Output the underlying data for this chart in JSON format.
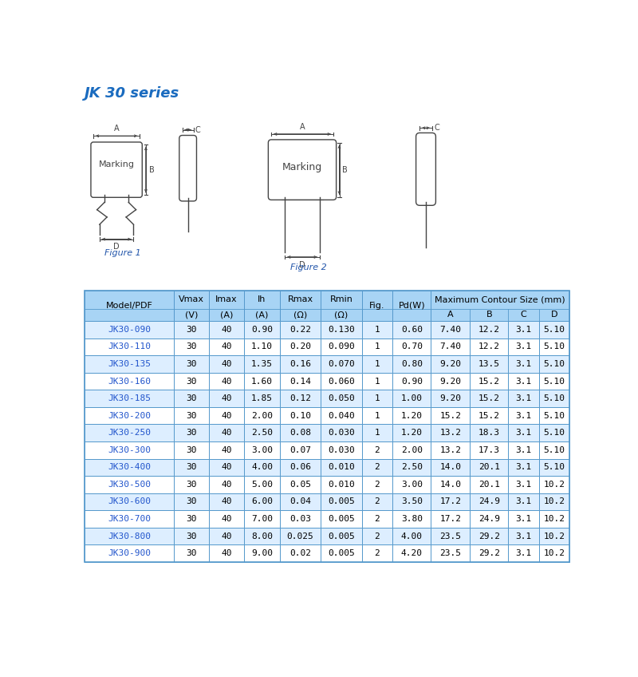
{
  "title": "JK 30 series",
  "title_color": "#1a6bbf",
  "figure1_label": "Figure 1",
  "figure2_label": "Figure 2",
  "figure_label_color": "#2255aa",
  "table_header_bg": "#a8d4f5",
  "table_border_color": "#5599cc",
  "table_model_color": "#2255cc",
  "col_headers_main": [
    "Model/PDF",
    "Vmax\n(V)",
    "Imax\n(A)",
    "Ih\n(A)",
    "Rmax\n(Ω)",
    "Rmin\n(Ω)",
    "Fig.",
    "Pd(W)"
  ],
  "col_headers_abcd": [
    "A",
    "B",
    "C",
    "D"
  ],
  "col_widths_raw": [
    108,
    43,
    43,
    43,
    50,
    50,
    37,
    47,
    47,
    47,
    37,
    37
  ],
  "rows": [
    [
      "JK30-090",
      "30",
      "40",
      "0.90",
      "0.22",
      "0.130",
      "1",
      "0.60",
      "7.40",
      "12.2",
      "3.1",
      "5.10"
    ],
    [
      "JK30-110",
      "30",
      "40",
      "1.10",
      "0.20",
      "0.090",
      "1",
      "0.70",
      "7.40",
      "12.2",
      "3.1",
      "5.10"
    ],
    [
      "JK30-135",
      "30",
      "40",
      "1.35",
      "0.16",
      "0.070",
      "1",
      "0.80",
      "9.20",
      "13.5",
      "3.1",
      "5.10"
    ],
    [
      "JK30-160",
      "30",
      "40",
      "1.60",
      "0.14",
      "0.060",
      "1",
      "0.90",
      "9.20",
      "15.2",
      "3.1",
      "5.10"
    ],
    [
      "JK30-185",
      "30",
      "40",
      "1.85",
      "0.12",
      "0.050",
      "1",
      "1.00",
      "9.20",
      "15.2",
      "3.1",
      "5.10"
    ],
    [
      "JK30-200",
      "30",
      "40",
      "2.00",
      "0.10",
      "0.040",
      "1",
      "1.20",
      "15.2",
      "15.2",
      "3.1",
      "5.10"
    ],
    [
      "JK30-250",
      "30",
      "40",
      "2.50",
      "0.08",
      "0.030",
      "1",
      "1.20",
      "13.2",
      "18.3",
      "3.1",
      "5.10"
    ],
    [
      "JK30-300",
      "30",
      "40",
      "3.00",
      "0.07",
      "0.030",
      "2",
      "2.00",
      "13.2",
      "17.3",
      "3.1",
      "5.10"
    ],
    [
      "JK30-400",
      "30",
      "40",
      "4.00",
      "0.06",
      "0.010",
      "2",
      "2.50",
      "14.0",
      "20.1",
      "3.1",
      "5.10"
    ],
    [
      "JK30-500",
      "30",
      "40",
      "5.00",
      "0.05",
      "0.010",
      "2",
      "3.00",
      "14.0",
      "20.1",
      "3.1",
      "10.2"
    ],
    [
      "JK30-600",
      "30",
      "40",
      "6.00",
      "0.04",
      "0.005",
      "2",
      "3.50",
      "17.2",
      "24.9",
      "3.1",
      "10.2"
    ],
    [
      "JK30-700",
      "30",
      "40",
      "7.00",
      "0.03",
      "0.005",
      "2",
      "3.80",
      "17.2",
      "24.9",
      "3.1",
      "10.2"
    ],
    [
      "JK30-800",
      "30",
      "40",
      "8.00",
      "0.025",
      "0.005",
      "2",
      "4.00",
      "23.5",
      "29.2",
      "3.1",
      "10.2"
    ],
    [
      "JK30-900",
      "30",
      "40",
      "9.00",
      "0.02",
      "0.005",
      "2",
      "4.20",
      "23.5",
      "29.2",
      "3.1",
      "10.2"
    ]
  ]
}
